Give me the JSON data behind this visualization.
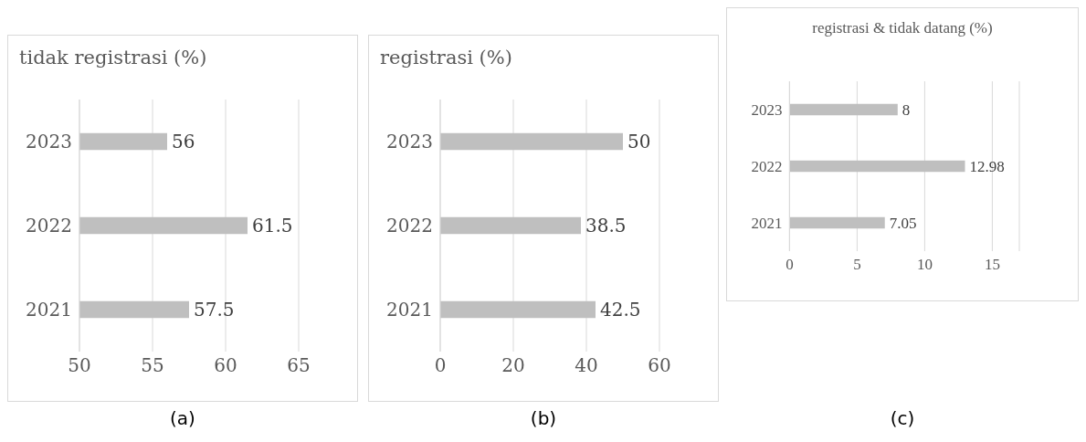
{
  "chart_data": [
    {
      "type": "bar",
      "orientation": "horizontal",
      "title": "tidak registrasi (%)",
      "categories": [
        "2023",
        "2022",
        "2021"
      ],
      "values": [
        56,
        61.5,
        57.5
      ],
      "color": "#bfbfbf",
      "xlim": [
        50,
        65
      ],
      "xticks": [
        50,
        55,
        60,
        65
      ],
      "grid": "x",
      "data_labels": true,
      "annotations": [
        "(a)"
      ]
    },
    {
      "type": "bar",
      "orientation": "horizontal",
      "title": "registrasi (%)",
      "categories": [
        "2023",
        "2022",
        "2021"
      ],
      "values": [
        50,
        38.5,
        42.5
      ],
      "color": "#bfbfbf",
      "xlim": [
        0,
        60
      ],
      "xticks": [
        0,
        20,
        40,
        60
      ],
      "grid": "x",
      "data_labels": true,
      "annotations": [
        "(b)"
      ]
    },
    {
      "type": "bar",
      "orientation": "horizontal",
      "title": "registrasi & tidak datang (%)",
      "categories": [
        "2023",
        "2022",
        "2021"
      ],
      "values": [
        8,
        12.98,
        7.05
      ],
      "color": "#bfbfbf",
      "xlim": [
        0,
        17
      ],
      "xticks": [
        0,
        5,
        10,
        15
      ],
      "grid": "x",
      "data_labels": true,
      "annotations": [
        "(c)"
      ]
    }
  ]
}
